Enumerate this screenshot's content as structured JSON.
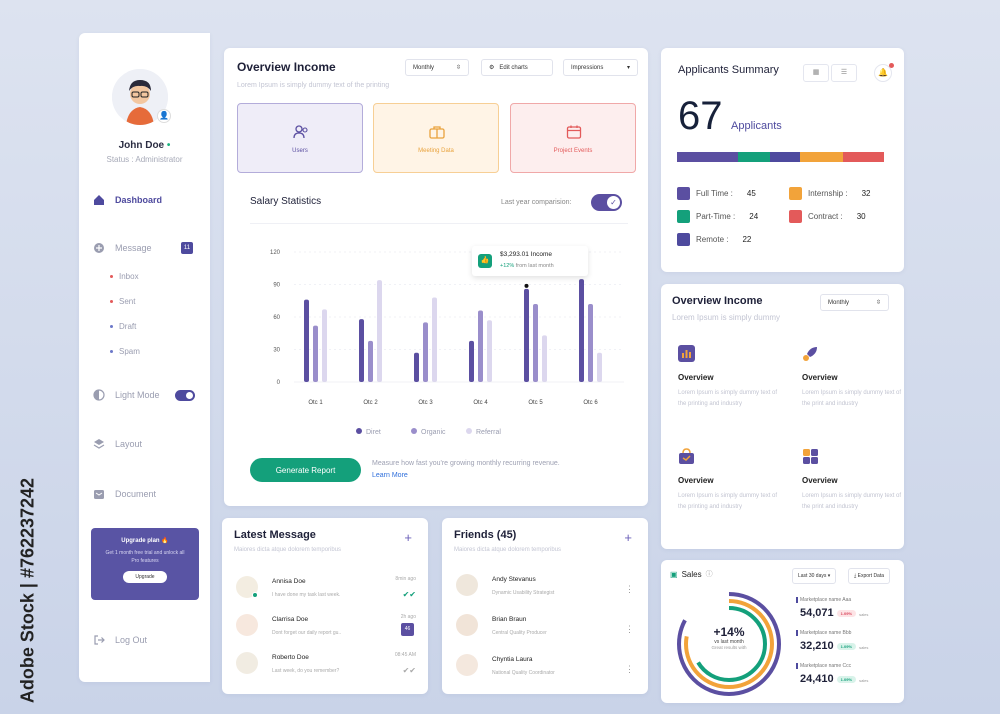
{
  "watermark": "Adobe Stock | #762237242",
  "sidebar": {
    "user_name": "John Doe",
    "user_status": "Status : Administrator",
    "nav": {
      "dashboard": "Dashboard",
      "message": "Message",
      "message_count": "11",
      "light_mode": "Light Mode",
      "layout": "Layout",
      "document": "Document",
      "logout": "Log Out"
    },
    "sub_items": [
      "Inbox",
      "Sent",
      "Draft",
      "Spam"
    ],
    "upgrade": {
      "title": "Upgrade plan 🔥",
      "desc": "Get 1 month free trial and unlock all Pro features",
      "button": "Upgrade"
    }
  },
  "overview_income": {
    "title": "Overview Income",
    "subtitle": "Lorem Ipsum is simply dummy text of the printing",
    "period": "Monthly",
    "edit_charts": "Edit charts",
    "metric": "Impressions",
    "tiles": [
      "Users",
      "Meeting Data",
      "Project Events"
    ]
  },
  "salary": {
    "title": "Salary Statistics",
    "compare_label": "Last year comparision:",
    "tooltip_value": "$3,293.01 Income",
    "tooltip_delta": "+12%",
    "tooltip_suffix": "from last month",
    "generate": "Generate Report",
    "measure": "Measure how fast you're growing monthly recurring revenue.",
    "learn_more": "Learn More"
  },
  "chart_data": {
    "type": "bar",
    "title": "Salary Statistics",
    "categories": [
      "Otc 1",
      "Otc 2",
      "Otc 3",
      "Otc 4",
      "Otc 5",
      "Otc 6"
    ],
    "yticks": [
      0,
      30,
      60,
      90,
      120
    ],
    "ylim": [
      0,
      120
    ],
    "series": [
      {
        "name": "Diret",
        "color": "#5b4fa1",
        "values": [
          76,
          58,
          27,
          38,
          86,
          95
        ]
      },
      {
        "name": "Organic",
        "color": "#9a8ecb",
        "values": [
          52,
          38,
          55,
          66,
          72,
          72
        ]
      },
      {
        "name": "Referral",
        "color": "#dcd7ee",
        "values": [
          67,
          94,
          78,
          57,
          43,
          27
        ]
      }
    ]
  },
  "applicants": {
    "title": "Applicants Summary",
    "count": "67",
    "label": "Applicants",
    "segments": [
      {
        "name": "Full Time :",
        "value": "45",
        "color": "#5b4fa1"
      },
      {
        "name": "Internship :",
        "value": "32",
        "color": "#f2a33a"
      },
      {
        "name": "Part-Time :",
        "value": "24",
        "color": "#14a07b"
      },
      {
        "name": "Contract :",
        "value": "30",
        "color": "#e35a5a"
      },
      {
        "name": "Remote :",
        "value": "22",
        "color": "#4e4a9e"
      }
    ]
  },
  "overview2": {
    "title": "Overview Income",
    "subtitle": "Lorem Ipsum is simply dummy",
    "period": "Monthly",
    "items": [
      {
        "title": "Overview",
        "desc": "Lorem Ipsum is simply dummy text of the printing and industry"
      },
      {
        "title": "Overview",
        "desc": "Lorem Ipsum is simply dummy text of the print and industry"
      },
      {
        "title": "Overview",
        "desc": "Lorem Ipsum is simply dummy text of the printing and industry"
      },
      {
        "title": "Overview",
        "desc": "Lorem Ipsum is simply dummy text of the print and industry"
      }
    ]
  },
  "messages": {
    "title": "Latest Message",
    "subtitle": "Maiores dicta atque dolorem temporibus",
    "items": [
      {
        "name": "Annisa Doe",
        "text": "I have done my task last week.",
        "time": "8min ago"
      },
      {
        "name": "Clarrisa Doe",
        "text": "Dont forget our daily report gu..",
        "time": "2h ago",
        "count": "46"
      },
      {
        "name": "Roberto Doe",
        "text": "Last week, do you remember?",
        "time": "08:45 AM"
      }
    ]
  },
  "friends": {
    "title": "Friends (45)",
    "subtitle": "Maiores dicta atque dolorem temporibus",
    "items": [
      {
        "name": "Andy Stevanus",
        "role": "Dynamic Usability Strategist"
      },
      {
        "name": "Brian Braun",
        "role": "Central Quality Producer"
      },
      {
        "name": "Chyntia Laura",
        "role": "National Quality Coordinator"
      }
    ]
  },
  "sales": {
    "title": "Sales",
    "range": "Last 30 days",
    "export": "Export Data",
    "center_value": "+14%",
    "center_label": "vs last month",
    "center_sub": "Great results with",
    "markets": [
      {
        "name": "Marketplace name Aaa",
        "value": "54,071",
        "delta": "1.09%",
        "dir": "red",
        "unit": "sales"
      },
      {
        "name": "Marketplace name Bbb",
        "value": "32,210",
        "delta": "1.09%",
        "dir": "green",
        "unit": "sales"
      },
      {
        "name": "Marketplace name Ccc",
        "value": "24,410",
        "delta": "1.09%",
        "dir": "green",
        "unit": "sales"
      }
    ]
  }
}
